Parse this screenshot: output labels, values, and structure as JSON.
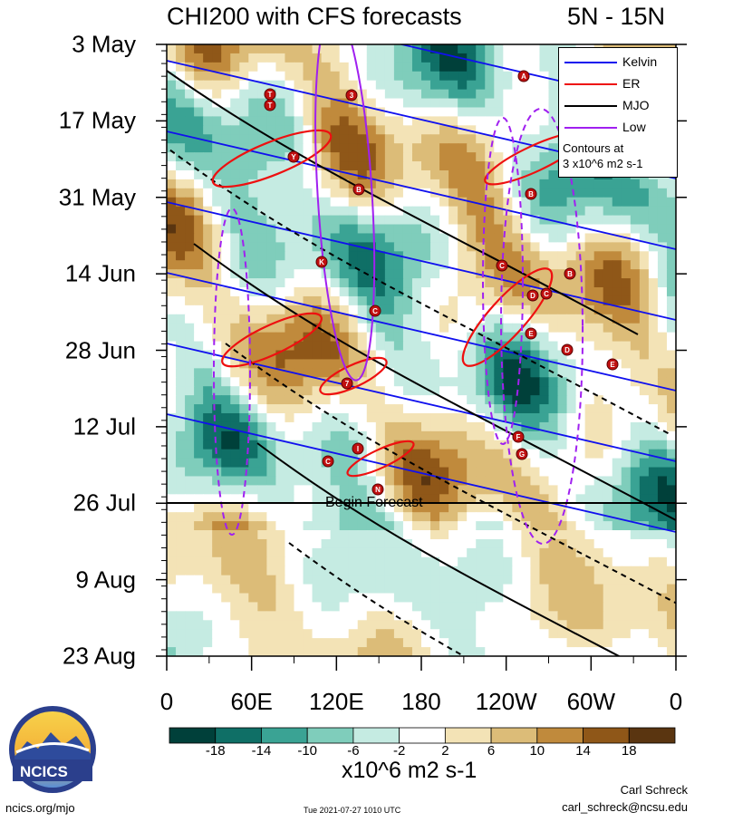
{
  "title": "CHI200 with CFS forecasts",
  "region": "5N - 15N",
  "chart_data": {
    "type": "heatmap",
    "title": "CHI200 with CFS forecasts",
    "subtitle": "5N - 15N",
    "x_ticks": [
      "0",
      "60E",
      "120E",
      "180",
      "120W",
      "60W",
      "0"
    ],
    "x_tick_values": [
      0,
      60,
      120,
      180,
      240,
      300,
      360
    ],
    "xlim": [
      0,
      360
    ],
    "y_ticks": [
      "3 May",
      "17 May",
      "31 May",
      "14 Jun",
      "28 Jun",
      "12 Jul",
      "26 Jul",
      "9 Aug",
      "23 Aug"
    ],
    "y_tick_values": [
      "2021-05-03",
      "2021-05-17",
      "2021-05-31",
      "2021-06-14",
      "2021-06-28",
      "2021-07-12",
      "2021-07-26",
      "2021-08-09",
      "2021-08-23"
    ],
    "ylim": [
      "2021-05-03",
      "2021-08-23"
    ],
    "forecast_start": "2021-07-26",
    "forecast_label": "Begin Forecast",
    "colorbar": {
      "ticks": [
        -18,
        -14,
        -10,
        -6,
        -2,
        2,
        6,
        10,
        14,
        18
      ],
      "tick_labels": [
        "-18",
        "-14",
        "-10",
        "-6",
        "-2",
        "2",
        "6",
        "10",
        "14",
        "18"
      ],
      "colors": [
        "#00403a",
        "#0f6f66",
        "#3aa394",
        "#7fcdbb",
        "#c5ebe2",
        "#ffffff",
        "#f3e3b6",
        "#dcbc78",
        "#c08a3c",
        "#8f5718",
        "#5a3510"
      ],
      "unit": "x10^6 m2 s-1"
    },
    "legend": {
      "placement": "top-right",
      "entries": [
        {
          "label": "Kelvin",
          "color": "#1010ee"
        },
        {
          "label": "ER",
          "color": "#ee1010"
        },
        {
          "label": "MJO",
          "color": "#000000"
        },
        {
          "label": "Low",
          "color": "#a020f0"
        }
      ],
      "note_lines": [
        "Contours at",
        "3 x10^6 m2 s-1"
      ]
    },
    "storm_markers": [
      "A",
      "3",
      "T",
      "T",
      "Y",
      "B",
      "K",
      "C",
      "B",
      "C",
      "D",
      "C",
      "E",
      "D",
      "E",
      "B",
      "7",
      "F",
      "G",
      "I",
      "C",
      "N"
    ]
  },
  "footer": {
    "logo_text": "NCICS",
    "site": "ncics.org/mjo",
    "timestamp": "Tue 2021-07-27 1010 UTC",
    "author": "Carl Schreck",
    "email": "carl_schreck@ncsu.edu"
  },
  "colors": {
    "kelvin": "#1010ee",
    "er": "#ee1010",
    "mjo": "#000000",
    "low": "#a020f0"
  }
}
